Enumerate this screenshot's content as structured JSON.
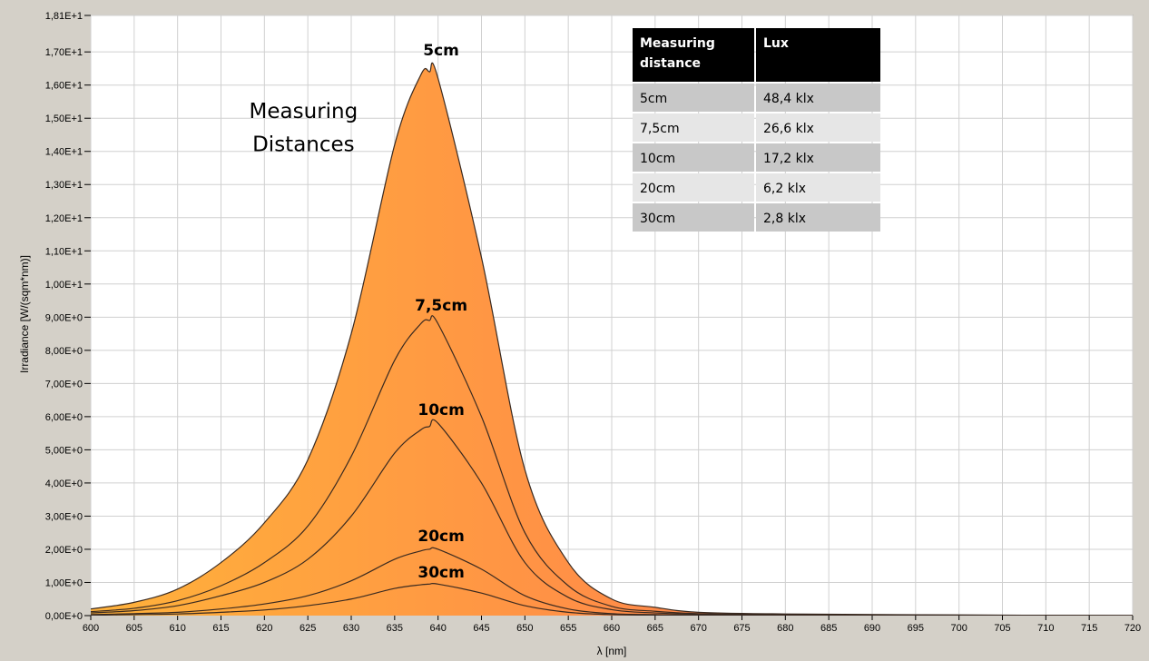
{
  "colors": {
    "window_bg": "#d4d0c8",
    "plot_bg": "#ffffff",
    "grid": "#d0d0d0",
    "gradient_start": "#ffb23a",
    "gradient_mid": "#ff8a48",
    "gradient_end": "#f2302c",
    "curve_stroke": "#3a2a20",
    "table_header_bg": "#000000",
    "table_row_dark": "#c8c8c8",
    "table_row_light": "#e6e6e6"
  },
  "chart_data": {
    "type": "area",
    "title": "",
    "xlabel": "λ [nm]",
    "ylabel": "Irradiance [W/(sqm*nm)]",
    "xlim": [
      600,
      720
    ],
    "ylim": [
      0,
      18.1
    ],
    "grid": true,
    "x_ticks": [
      600,
      605,
      610,
      615,
      620,
      625,
      630,
      635,
      640,
      645,
      650,
      655,
      660,
      665,
      670,
      675,
      680,
      685,
      690,
      695,
      700,
      705,
      710,
      715,
      720
    ],
    "y_ticks": [
      {
        "value": 0,
        "label": "0,00E+0"
      },
      {
        "value": 1,
        "label": "1,00E+0"
      },
      {
        "value": 2,
        "label": "2,00E+0"
      },
      {
        "value": 3,
        "label": "3,00E+0"
      },
      {
        "value": 4,
        "label": "4,00E+0"
      },
      {
        "value": 5,
        "label": "5,00E+0"
      },
      {
        "value": 6,
        "label": "6,00E+0"
      },
      {
        "value": 7,
        "label": "7,00E+0"
      },
      {
        "value": 8,
        "label": "8,00E+0"
      },
      {
        "value": 9,
        "label": "9,00E+0"
      },
      {
        "value": 10,
        "label": "1,00E+1"
      },
      {
        "value": 11,
        "label": "1,10E+1"
      },
      {
        "value": 12,
        "label": "1,20E+1"
      },
      {
        "value": 13,
        "label": "1,30E+1"
      },
      {
        "value": 14,
        "label": "1,40E+1"
      },
      {
        "value": 15,
        "label": "1,50E+1"
      },
      {
        "value": 16,
        "label": "1,60E+1"
      },
      {
        "value": 17,
        "label": "1,70E+1"
      },
      {
        "value": 18.1,
        "label": "1,81E+1"
      }
    ],
    "x": [
      600,
      605,
      610,
      615,
      620,
      625,
      630,
      635,
      638,
      639,
      640,
      645,
      650,
      655,
      660,
      665,
      670,
      680,
      700,
      720
    ],
    "series": [
      {
        "name": "5cm",
        "values": [
          0.2,
          0.4,
          0.8,
          1.6,
          2.8,
          4.7,
          8.5,
          14.2,
          16.3,
          16.4,
          16.2,
          10.8,
          4.4,
          1.6,
          0.5,
          0.25,
          0.1,
          0.05,
          0.02,
          0.0
        ]
      },
      {
        "name": "7,5cm",
        "values": [
          0.12,
          0.22,
          0.45,
          0.9,
          1.6,
          2.7,
          4.8,
          7.7,
          8.8,
          8.9,
          8.8,
          6.0,
          2.5,
          0.9,
          0.28,
          0.13,
          0.06,
          0.03,
          0.01,
          0.0
        ]
      },
      {
        "name": "10cm",
        "values": [
          0.08,
          0.15,
          0.3,
          0.6,
          1.0,
          1.7,
          3.0,
          4.9,
          5.6,
          5.7,
          5.8,
          4.0,
          1.6,
          0.55,
          0.18,
          0.08,
          0.04,
          0.02,
          0.01,
          0.0
        ]
      },
      {
        "name": "20cm",
        "values": [
          0.03,
          0.06,
          0.1,
          0.2,
          0.35,
          0.6,
          1.05,
          1.7,
          1.95,
          2.0,
          2.0,
          1.4,
          0.6,
          0.2,
          0.06,
          0.03,
          0.015,
          0.01,
          0.0,
          0.0
        ]
      },
      {
        "name": "30cm",
        "values": [
          0.01,
          0.03,
          0.05,
          0.1,
          0.17,
          0.3,
          0.5,
          0.82,
          0.93,
          0.95,
          0.95,
          0.68,
          0.3,
          0.1,
          0.03,
          0.015,
          0.008,
          0.004,
          0.0,
          0.0
        ]
      }
    ],
    "curve_labels": [
      {
        "text": "5cm",
        "x": 639,
        "y": 16.9
      },
      {
        "text": "7,5cm",
        "x": 639,
        "y": 9.2
      },
      {
        "text": "10cm",
        "x": 639,
        "y": 6.05
      },
      {
        "text": "20cm",
        "x": 639,
        "y": 2.25
      },
      {
        "text": "30cm",
        "x": 639,
        "y": 1.15
      }
    ],
    "annotation": {
      "lines": [
        "Measuring",
        "Distances"
      ],
      "x": 624.5,
      "y": [
        15.0,
        14.0
      ]
    },
    "table": {
      "headers": [
        [
          "Measuring",
          "distance"
        ],
        [
          "Lux"
        ]
      ],
      "rows": [
        [
          "5cm",
          "48,4 klx"
        ],
        [
          "7,5cm",
          "26,6 klx"
        ],
        [
          "10cm",
          "17,2 klx"
        ],
        [
          "20cm",
          "6,2 klx"
        ],
        [
          "30cm",
          "2,8 klx"
        ]
      ]
    }
  }
}
